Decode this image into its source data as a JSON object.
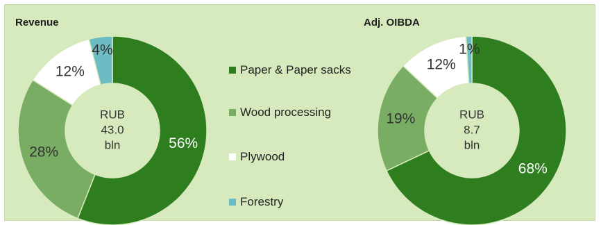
{
  "chart_data": [
    {
      "type": "pie",
      "title": "Revenue",
      "center_label": [
        "RUB",
        "43.0",
        "bln"
      ],
      "categories": [
        "Paper & Paper sacks",
        "Wood processing",
        "Plywood",
        "Forestry"
      ],
      "values": [
        56,
        28,
        12,
        4
      ],
      "value_labels": [
        "56%",
        "28%",
        "12%",
        "4%"
      ]
    },
    {
      "type": "pie",
      "title": "Adj. OIBDA",
      "center_label": [
        "RUB",
        "8.7",
        "bln"
      ],
      "categories": [
        "Paper & Paper sacks",
        "Wood processing",
        "Plywood",
        "Forestry"
      ],
      "values": [
        68,
        19,
        12,
        1
      ],
      "value_labels": [
        "68%",
        "19%",
        "12%",
        "1%"
      ]
    }
  ],
  "legend": [
    {
      "label": "Paper & Paper sacks",
      "color": "#2e7d1e"
    },
    {
      "label": "Wood processing",
      "color": "#7aad64"
    },
    {
      "label": "Plywood",
      "color": "#ffffff"
    },
    {
      "label": "Forestry",
      "color": "#6cbcc4"
    }
  ],
  "colors": {
    "background": "#d6eabd",
    "hole": "#d6eabd"
  }
}
